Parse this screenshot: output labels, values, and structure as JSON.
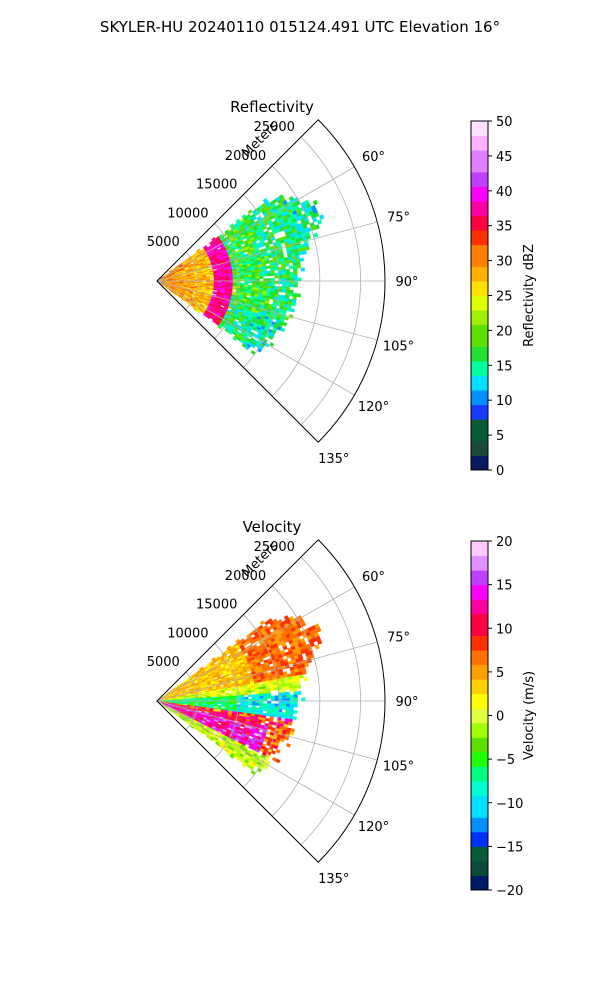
{
  "figure": {
    "suptitle": "SKYLER-HU  20240110  015124.491 UTC Elevation 16°"
  },
  "chart_data": [
    {
      "type": "heatmap",
      "subtype": "polar-sector-ppi",
      "title": "Reflectivity",
      "radial_axis_label": "Meters",
      "radial_ticks": [
        "5000",
        "10000",
        "15000",
        "20000",
        "25000"
      ],
      "radial_tick_values": [
        5000,
        10000,
        15000,
        20000,
        25000
      ],
      "rlim": [
        0,
        28000
      ],
      "angle_ticks": [
        "60°",
        "75°",
        "90°",
        "105°",
        "120°",
        "135°"
      ],
      "angle_tick_values": [
        60,
        75,
        90,
        105,
        120,
        135
      ],
      "thetalim": [
        45,
        135
      ],
      "grid": true,
      "colorbar": {
        "label": "Reflectivity dBZ",
        "range": [
          0,
          50
        ],
        "ticks": [
          "0",
          "5",
          "10",
          "15",
          "20",
          "25",
          "30",
          "35",
          "40",
          "45",
          "50"
        ],
        "tick_values": [
          0,
          5,
          10,
          15,
          20,
          25,
          30,
          35,
          40,
          45,
          50
        ],
        "colormap": "pyart_HomeyerRainbow"
      },
      "field_summary": [
        {
          "range_m": [
            0,
            7000
          ],
          "value_dbz": 30,
          "description": "orange/yellow near radar"
        },
        {
          "range_m": [
            7000,
            9000
          ],
          "value_dbz": 38,
          "description": "red/magenta arc"
        },
        {
          "range_m": [
            9000,
            19000
          ],
          "value_dbz": 18,
          "description": "green outer echoes"
        }
      ]
    },
    {
      "type": "heatmap",
      "subtype": "polar-sector-ppi",
      "title": "Velocity",
      "radial_axis_label": "Meters",
      "radial_ticks": [
        "5000",
        "10000",
        "15000",
        "20000",
        "25000"
      ],
      "radial_tick_values": [
        5000,
        10000,
        15000,
        20000,
        25000
      ],
      "rlim": [
        0,
        28000
      ],
      "angle_ticks": [
        "60°",
        "75°",
        "90°",
        "105°",
        "120°",
        "135°"
      ],
      "angle_tick_values": [
        60,
        75,
        90,
        105,
        120,
        135
      ],
      "thetalim": [
        45,
        135
      ],
      "grid": true,
      "colorbar": {
        "label": "Velocity (m/s)",
        "range": [
          -20,
          20
        ],
        "ticks": [
          "−20",
          "−15",
          "−10",
          "−5",
          "0",
          "5",
          "10",
          "15",
          "20"
        ],
        "tick_values": [
          -20,
          -15,
          -10,
          -5,
          0,
          5,
          10,
          15,
          20
        ],
        "colormap": "pyart_BuDRd18-like"
      },
      "field_summary": [
        {
          "azimuth_deg": [
            55,
            80
          ],
          "value_ms": 3,
          "description": "yellow/orange, slight positive"
        },
        {
          "azimuth_deg": [
            82,
            98
          ],
          "value_ms": -8,
          "description": "green/cyan, negative"
        },
        {
          "azimuth_deg": [
            100,
            118
          ],
          "value_ms": 10,
          "description": "red/magenta, positive"
        }
      ]
    }
  ],
  "colors": {
    "refl_map": [
      "#0a1a5e",
      "#1a4a3a",
      "#0a5a3a",
      "#1a3aff",
      "#0090ff",
      "#00e0ff",
      "#00ffa0",
      "#20e030",
      "#60e000",
      "#a0f000",
      "#e0ff00",
      "#ffe000",
      "#ffb000",
      "#ff8000",
      "#ff3000",
      "#ff0040",
      "#ff00a0",
      "#ff00ff",
      "#c040ff",
      "#e080ff",
      "#ffb0ff",
      "#ffe0ff"
    ],
    "vel_map": [
      "#001a66",
      "#0a4a3a",
      "#0a5a3a",
      "#0030ff",
      "#0090ff",
      "#00e0ff",
      "#00ffd0",
      "#00ff80",
      "#20ff00",
      "#60e000",
      "#a0ff00",
      "#e0ff40",
      "#ffff00",
      "#ffd000",
      "#ffa000",
      "#ff7000",
      "#ff3000",
      "#ff0040",
      "#ff00a0",
      "#ff00ff",
      "#c040ff",
      "#e090ff",
      "#ffc8ff"
    ]
  }
}
